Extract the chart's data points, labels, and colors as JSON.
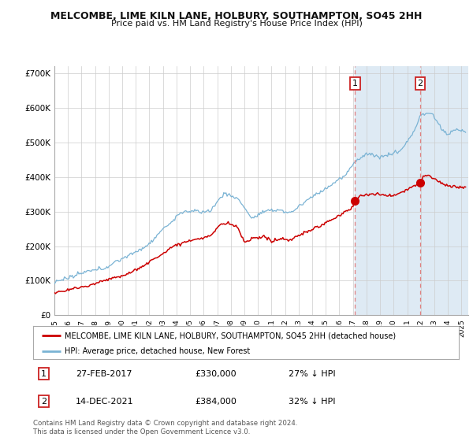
{
  "title": "MELCOMBE, LIME KILN LANE, HOLBURY, SOUTHAMPTON, SO45 2HH",
  "subtitle": "Price paid vs. HM Land Registry's House Price Index (HPI)",
  "xlim": [
    1995.0,
    2025.5
  ],
  "ylim": [
    0,
    720000
  ],
  "yticks": [
    0,
    100000,
    200000,
    300000,
    400000,
    500000,
    600000,
    700000
  ],
  "ytick_labels": [
    "£0",
    "£100K",
    "£200K",
    "£300K",
    "£400K",
    "£500K",
    "£600K",
    "£700K"
  ],
  "sale1_x": 2017.15,
  "sale1_y": 330000,
  "sale1_label": "1",
  "sale2_x": 2021.96,
  "sale2_y": 384000,
  "sale2_label": "2",
  "hpi_color": "#7ab3d4",
  "price_color": "#cc0000",
  "vline_color": "#e08080",
  "shade_color": "#deeaf4",
  "legend_label_price": "MELCOMBE, LIME KILN LANE, HOLBURY, SOUTHAMPTON, SO45 2HH (detached house)",
  "legend_label_hpi": "HPI: Average price, detached house, New Forest",
  "table_row1": [
    "1",
    "27-FEB-2017",
    "£330,000",
    "27% ↓ HPI"
  ],
  "table_row2": [
    "2",
    "14-DEC-2021",
    "£384,000",
    "32% ↓ HPI"
  ],
  "footer": "Contains HM Land Registry data © Crown copyright and database right 2024.\nThis data is licensed under the Open Government Licence v3.0.",
  "background_color": "#ffffff",
  "grid_color": "#cccccc"
}
